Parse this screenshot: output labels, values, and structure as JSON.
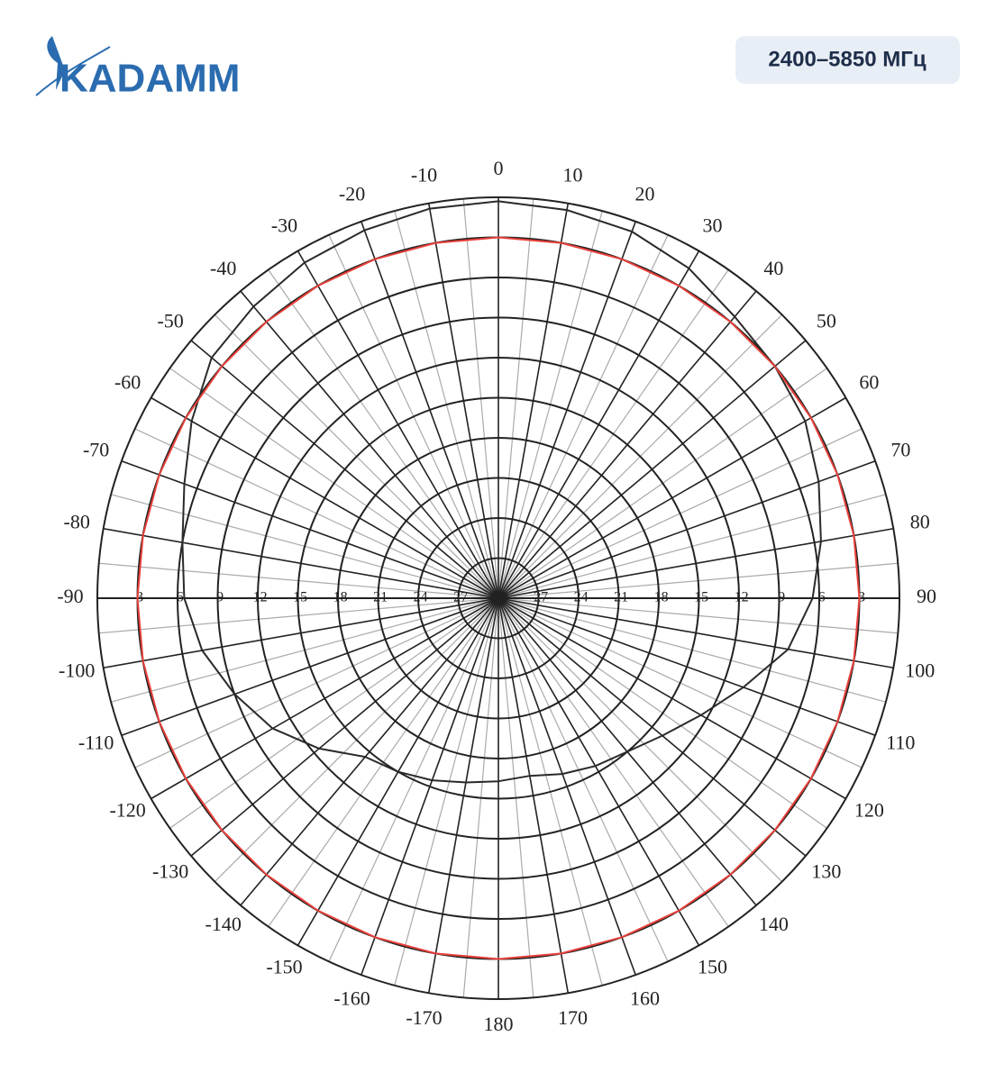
{
  "header": {
    "logo": "KADAMM",
    "badge": "2400–5850 МГц"
  },
  "chart_data": {
    "type": "polar",
    "theta": [
      -180,
      -170,
      -160,
      -150,
      -140,
      -130,
      -120,
      -110,
      -100,
      -90,
      -80,
      -70,
      -60,
      -50,
      -40,
      -30,
      -20,
      -10,
      0,
      10,
      20,
      30,
      40,
      50,
      60,
      70,
      80,
      90,
      100,
      110,
      120,
      130,
      140,
      150,
      160,
      170
    ],
    "series": [
      {
        "color": "#2a2a2a",
        "values": [
          -16.3,
          -16,
          -15.5,
          -15,
          -14.5,
          -12.5,
          -10.5,
          -9,
          -7.5,
          -6.5,
          -6,
          -5,
          -3.5,
          -2,
          -1.5,
          -1,
          -0.7,
          -0.4,
          -0.3,
          -0.5,
          -0.8,
          -1.5,
          -2.5,
          -3,
          -3.5,
          -4.5,
          -5.5,
          -6.5,
          -8,
          -10.5,
          -12.5,
          -14,
          -15,
          -15.5,
          -16,
          -16.5
        ]
      },
      {
        "color": "#e8403a",
        "values": [
          -3,
          -3,
          -3,
          -3,
          -3,
          -3,
          -3,
          -3,
          -3,
          -3,
          -3,
          -3,
          -3,
          -3,
          -3,
          -3,
          -3,
          -3,
          -3,
          -3,
          -3,
          -3,
          -3,
          -3,
          -3,
          -3,
          -3,
          -3,
          -3,
          -3,
          -3,
          -3,
          -3,
          -3,
          -3,
          -3
        ]
      }
    ],
    "rlim": [
      -30,
      0
    ],
    "rticks": [
      -30,
      -27,
      -24,
      -21,
      -18,
      -15,
      -12,
      -9,
      -6,
      -3
    ],
    "thetaticks": [
      0,
      10,
      20,
      30,
      40,
      50,
      60,
      70,
      80,
      90,
      100,
      110,
      120,
      130,
      140,
      150,
      160,
      170,
      180,
      -170,
      -160,
      -150,
      -140,
      -130,
      -120,
      -110,
      -100,
      -90,
      -80,
      -70,
      -60,
      -50,
      -40,
      -30,
      -20,
      -10
    ]
  }
}
